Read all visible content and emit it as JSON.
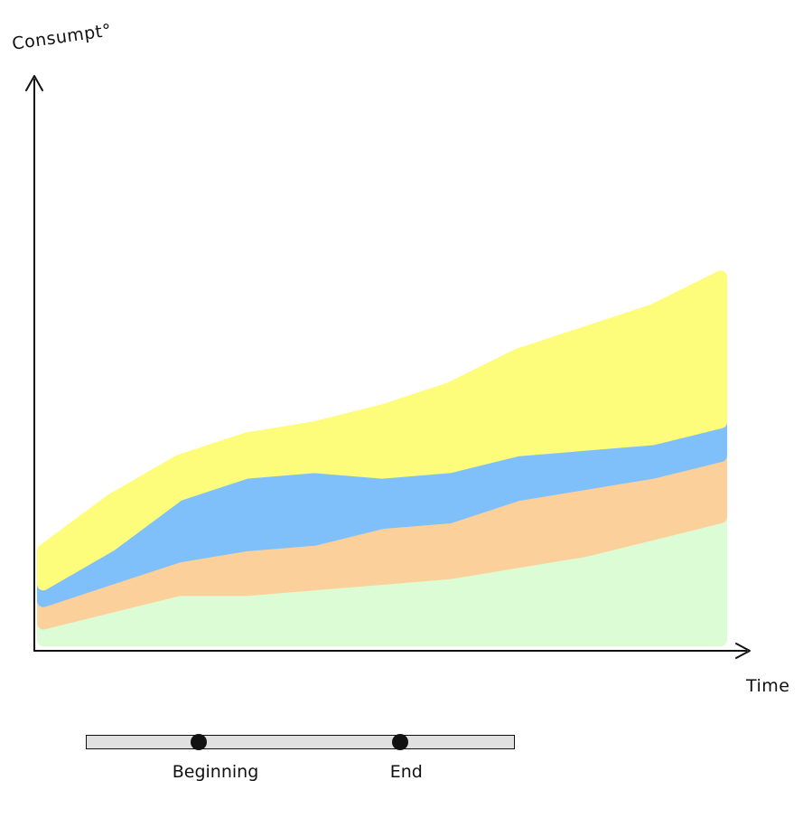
{
  "chart_data": {
    "type": "area",
    "stacked": true,
    "title": "",
    "xlabel": "Time",
    "ylabel": "Consumpt°",
    "x": [
      0,
      1,
      2,
      3,
      4,
      5,
      6,
      7,
      8,
      9,
      10
    ],
    "xlim": [
      0,
      10
    ],
    "ylim": [
      0,
      100
    ],
    "grid": false,
    "legend": "none",
    "series": [
      {
        "color": "#dcfcd6",
        "values": [
          3,
          6,
          9,
          9,
          10,
          11,
          12,
          14,
          16,
          19,
          22
        ]
      },
      {
        "color": "#fcd09a",
        "values": [
          4,
          5,
          6,
          8,
          8,
          10,
          10,
          12,
          12,
          11,
          11
        ]
      },
      {
        "color": "#7fbffa",
        "values": [
          3,
          6,
          11,
          13,
          13,
          9,
          9,
          8,
          7,
          6,
          6
        ]
      },
      {
        "color": "#fdfd7b",
        "values": [
          6,
          8,
          6,
          6,
          7,
          11,
          14,
          17,
          20,
          23,
          26
        ]
      }
    ]
  },
  "timeline": {
    "beginning_label": "Beginning",
    "end_label": "End",
    "beginning_position": 0.26,
    "end_position": 0.73
  }
}
